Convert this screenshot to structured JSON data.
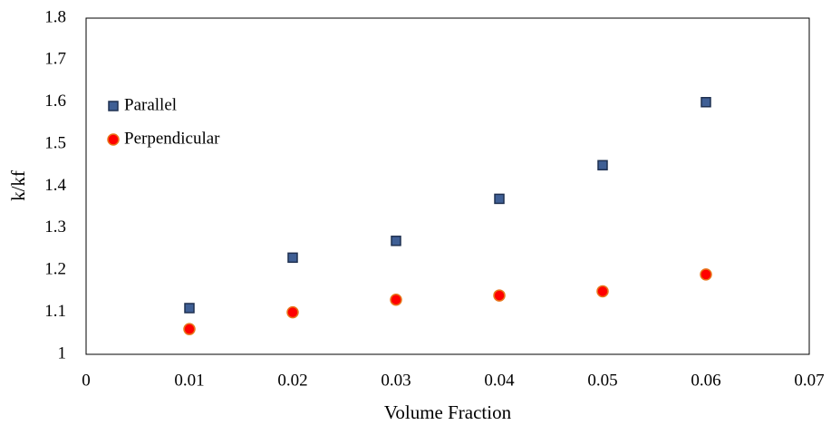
{
  "chart_data": {
    "type": "scatter",
    "x_label": "Volume Fraction",
    "y_label": "k/kf",
    "x": [
      0.01,
      0.02,
      0.03,
      0.04,
      0.05,
      0.06
    ],
    "series": [
      {
        "name": "Parallel",
        "color": "#3f5f95",
        "edgecolor": "#1f3050",
        "marker": "square",
        "values": [
          1.11,
          1.23,
          1.27,
          1.37,
          1.45,
          1.6
        ]
      },
      {
        "name": "Perpendicular",
        "color": "#ff0000",
        "edgecolor": "#e8761c",
        "marker": "circle",
        "values": [
          1.06,
          1.1,
          1.13,
          1.14,
          1.15,
          1.19
        ]
      }
    ],
    "xlim": [
      0,
      0.07
    ],
    "xticks": [
      0,
      0.01,
      0.02,
      0.03,
      0.04,
      0.05,
      0.06,
      0.07
    ],
    "ylim": [
      1,
      1.8
    ],
    "yticks": [
      1,
      1.1,
      1.2,
      1.3,
      1.4,
      1.5,
      1.6,
      1.7,
      1.8
    ],
    "grid": false,
    "legend": "upper-left"
  }
}
